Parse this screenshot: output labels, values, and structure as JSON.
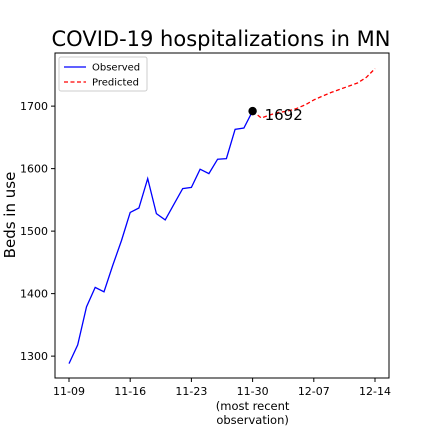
{
  "chart_data": {
    "type": "line",
    "title": "COVID-19 hospitalizations in MN",
    "xlabel": "",
    "ylabel": "Beds in use",
    "x_tick_labels": [
      "11-09",
      "11-16",
      "11-23",
      "11-30",
      "12-07",
      "12-14"
    ],
    "x_tick_days": [
      0,
      7,
      14,
      21,
      28,
      35
    ],
    "x_tick_note": "(most recent\nobservation)",
    "y_ticks": [
      1300,
      1400,
      1500,
      1600,
      1700
    ],
    "xlim": [
      -1.6,
      36.6
    ],
    "ylim": [
      1265,
      1785
    ],
    "grid": false,
    "legend_position": "top-left",
    "series": [
      {
        "name": "Observed",
        "color": "#0000ff",
        "style": "solid",
        "x": [
          0,
          1,
          2,
          3,
          4,
          5,
          6,
          7,
          8,
          9,
          10,
          11,
          12,
          13,
          14,
          15,
          16,
          17,
          18,
          19,
          20,
          21
        ],
        "y": [
          1288,
          1318,
          1379,
          1410,
          1403,
          1445,
          1485,
          1530,
          1537,
          1584,
          1528,
          1518,
          1543,
          1568,
          1570,
          1599,
          1592,
          1615,
          1616,
          1663,
          1665,
          1692
        ]
      },
      {
        "name": "Predicted",
        "color": "#ff0000",
        "style": "dashed",
        "x": [
          21,
          22,
          23,
          24,
          25,
          26,
          27,
          28,
          29,
          30,
          31,
          32,
          33,
          34,
          35
        ],
        "y": [
          1692,
          1681,
          1686,
          1690,
          1692,
          1696,
          1702,
          1710,
          1716,
          1722,
          1727,
          1732,
          1737,
          1746,
          1760
        ]
      }
    ],
    "annotation": {
      "x": 21,
      "y": 1692,
      "label": "1692"
    }
  }
}
